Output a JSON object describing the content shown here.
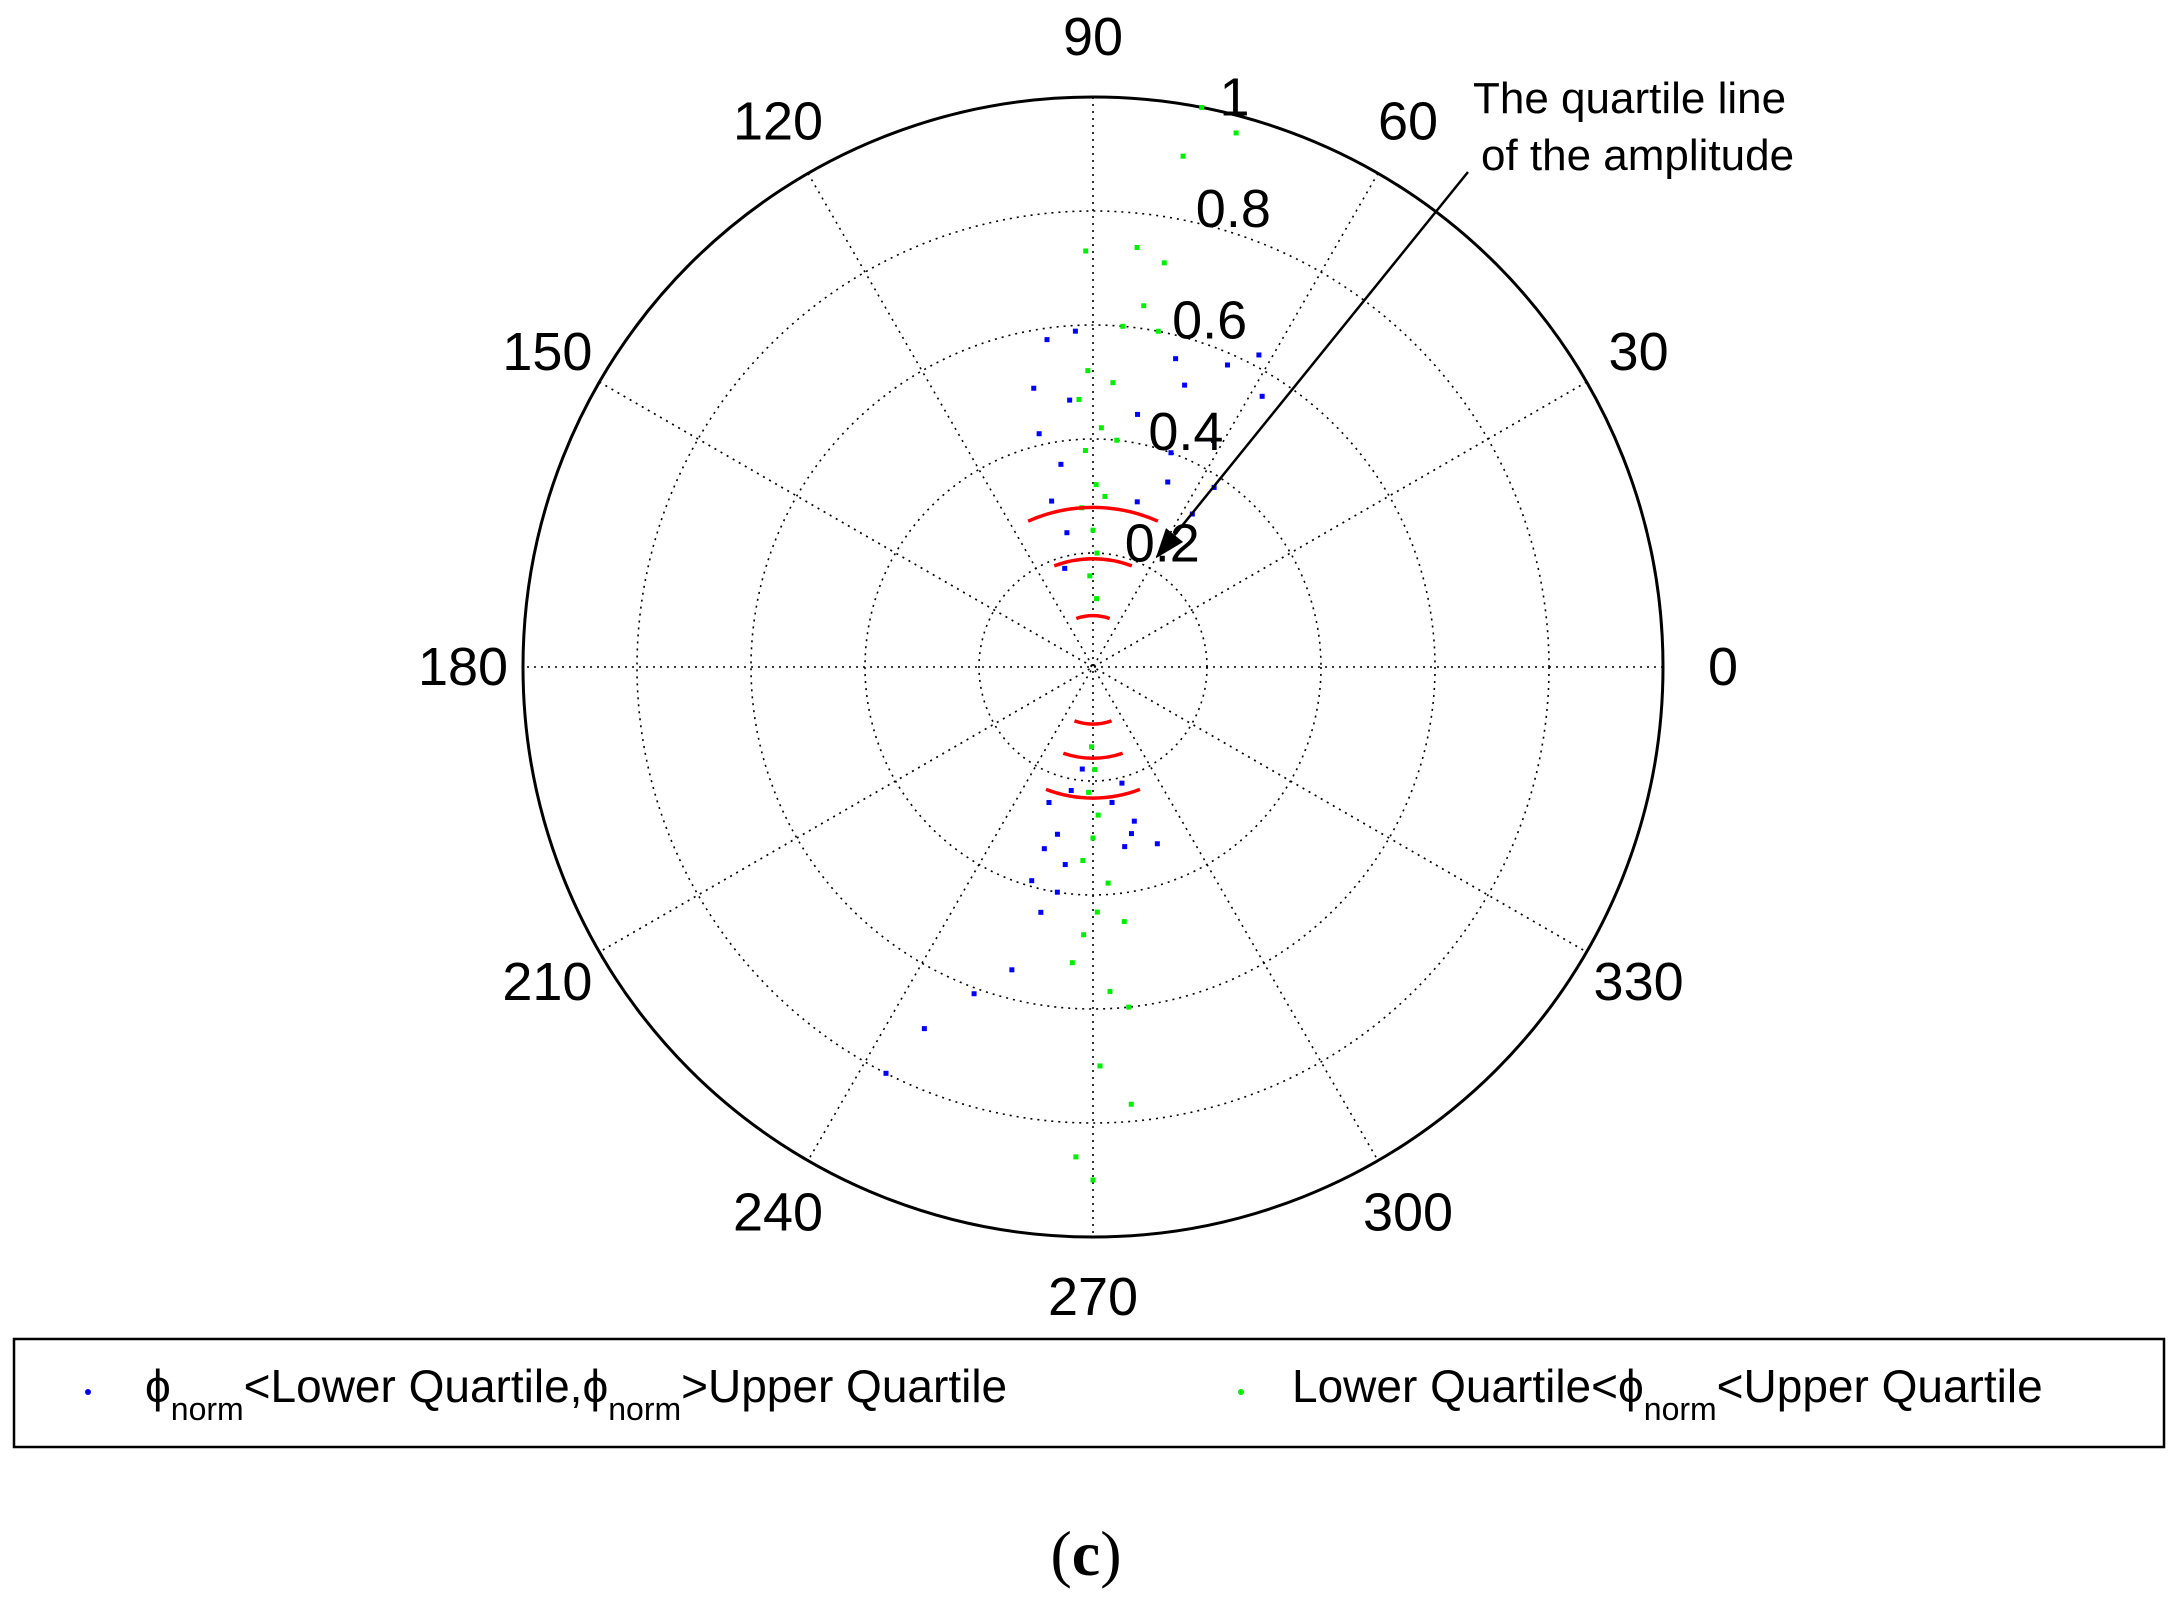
{
  "chart_data": {
    "type": "scatter",
    "coordinate_system": "polar",
    "angle_unit": "degrees",
    "angle_ticks": [
      "0",
      "30",
      "60",
      "90",
      "120",
      "150",
      "180",
      "210",
      "240",
      "270",
      "300",
      "330"
    ],
    "radial_ticks": [
      "0.2",
      "0.4",
      "0.6",
      "0.8",
      "1"
    ],
    "rlim": [
      0,
      1
    ],
    "grid": true,
    "legend_position": "bottom",
    "annotation": {
      "line1": "The quartile line",
      "line2": "of the amplitude",
      "points_to": {
        "angle": 60,
        "r": 0.22
      }
    },
    "series": [
      {
        "name_prefix": "ϕ",
        "name_sub1": "norm",
        "name_mid": "<Lower Quartile,ϕ",
        "name_sub2": "norm",
        "name_suffix": ">Upper Quartile",
        "color": "#0000ff",
        "points": [
          {
            "theta": 98,
            "r": 0.58
          },
          {
            "theta": 93,
            "r": 0.59
          },
          {
            "theta": 103,
            "r": 0.42
          },
          {
            "theta": 99,
            "r": 0.36
          },
          {
            "theta": 75,
            "r": 0.56
          },
          {
            "theta": 72,
            "r": 0.52
          },
          {
            "theta": 62,
            "r": 0.62
          },
          {
            "theta": 66,
            "r": 0.58
          },
          {
            "theta": 58,
            "r": 0.56
          },
          {
            "theta": 62,
            "r": 0.45
          },
          {
            "theta": 56,
            "r": 0.38
          },
          {
            "theta": 57,
            "r": 0.32
          },
          {
            "theta": 104,
            "r": 0.3
          },
          {
            "theta": 101,
            "r": 0.24
          },
          {
            "theta": 80,
            "r": 0.45
          },
          {
            "theta": 70,
            "r": 0.4
          },
          {
            "theta": 60,
            "r": 0.26
          },
          {
            "theta": 106,
            "r": 0.18
          },
          {
            "theta": 75,
            "r": 0.3
          },
          {
            "theta": 95,
            "r": 0.47
          },
          {
            "theta": 68,
            "r": 0.35
          },
          {
            "theta": 102,
            "r": 0.5
          },
          {
            "theta": 243,
            "r": 0.8
          },
          {
            "theta": 245,
            "r": 0.7
          },
          {
            "theta": 250,
            "r": 0.61
          },
          {
            "theta": 255,
            "r": 0.55
          },
          {
            "theta": 258,
            "r": 0.44
          },
          {
            "theta": 262,
            "r": 0.35
          },
          {
            "theta": 258,
            "r": 0.3
          },
          {
            "theta": 255,
            "r": 0.33
          },
          {
            "theta": 290,
            "r": 0.33
          },
          {
            "theta": 285,
            "r": 0.28
          },
          {
            "theta": 280,
            "r": 0.32
          },
          {
            "theta": 278,
            "r": 0.24
          },
          {
            "theta": 284,
            "r": 0.21
          },
          {
            "theta": 260,
            "r": 0.22
          },
          {
            "theta": 252,
            "r": 0.25
          },
          {
            "theta": 264,
            "r": 0.18
          },
          {
            "theta": 261,
            "r": 0.4
          },
          {
            "theta": 254,
            "r": 0.39
          },
          {
            "theta": 283,
            "r": 0.3
          }
        ]
      },
      {
        "name": "Lower Quartile<ϕnorm<Upper Quartile",
        "name_prefix": "Lower Quartile<ϕ",
        "name_sub": "norm",
        "name_suffix": "<Upper Quartile",
        "color": "#00ee00",
        "points": [
          {
            "theta": 79,
            "r": 1.0
          },
          {
            "theta": 75,
            "r": 0.97
          },
          {
            "theta": 80,
            "r": 0.91
          },
          {
            "theta": 91,
            "r": 0.73
          },
          {
            "theta": 84,
            "r": 0.74
          },
          {
            "theta": 80,
            "r": 0.72
          },
          {
            "theta": 82,
            "r": 0.64
          },
          {
            "theta": 85,
            "r": 0.6
          },
          {
            "theta": 79,
            "r": 0.6
          },
          {
            "theta": 91,
            "r": 0.52
          },
          {
            "theta": 93,
            "r": 0.47
          },
          {
            "theta": 86,
            "r": 0.5
          },
          {
            "theta": 88,
            "r": 0.42
          },
          {
            "theta": 92,
            "r": 0.38
          },
          {
            "theta": 84,
            "r": 0.4
          },
          {
            "theta": 89,
            "r": 0.32
          },
          {
            "theta": 94,
            "r": 0.28
          },
          {
            "theta": 86,
            "r": 0.3
          },
          {
            "theta": 90,
            "r": 0.24
          },
          {
            "theta": 88,
            "r": 0.2
          },
          {
            "theta": 92,
            "r": 0.16
          },
          {
            "theta": 87,
            "r": 0.12
          },
          {
            "theta": 270,
            "r": 0.9
          },
          {
            "theta": 268,
            "r": 0.86
          },
          {
            "theta": 275,
            "r": 0.77
          },
          {
            "theta": 271,
            "r": 0.7
          },
          {
            "theta": 276,
            "r": 0.6
          },
          {
            "theta": 273,
            "r": 0.57
          },
          {
            "theta": 266,
            "r": 0.52
          },
          {
            "theta": 268,
            "r": 0.47
          },
          {
            "theta": 271,
            "r": 0.43
          },
          {
            "theta": 274,
            "r": 0.38
          },
          {
            "theta": 267,
            "r": 0.34
          },
          {
            "theta": 270,
            "r": 0.3
          },
          {
            "theta": 272,
            "r": 0.26
          },
          {
            "theta": 268,
            "r": 0.22
          },
          {
            "theta": 271,
            "r": 0.18
          },
          {
            "theta": 269,
            "r": 0.14
          },
          {
            "theta": 277,
            "r": 0.45
          }
        ]
      }
    ],
    "quartile_arcs": [
      {
        "r": 0.09,
        "theta_start": 71,
        "theta_end": 109
      },
      {
        "r": 0.19,
        "theta_start": 69,
        "theta_end": 111
      },
      {
        "r": 0.28,
        "theta_start": 66,
        "theta_end": 114
      },
      {
        "r": 0.1,
        "theta_start": 251,
        "theta_end": 289
      },
      {
        "r": 0.16,
        "theta_start": 251,
        "theta_end": 289
      },
      {
        "r": 0.23,
        "theta_start": 249,
        "theta_end": 291
      }
    ],
    "quartile_arc_color": "#ff0000"
  },
  "caption": {
    "open": "(",
    "letter": "c",
    "close": ")"
  }
}
